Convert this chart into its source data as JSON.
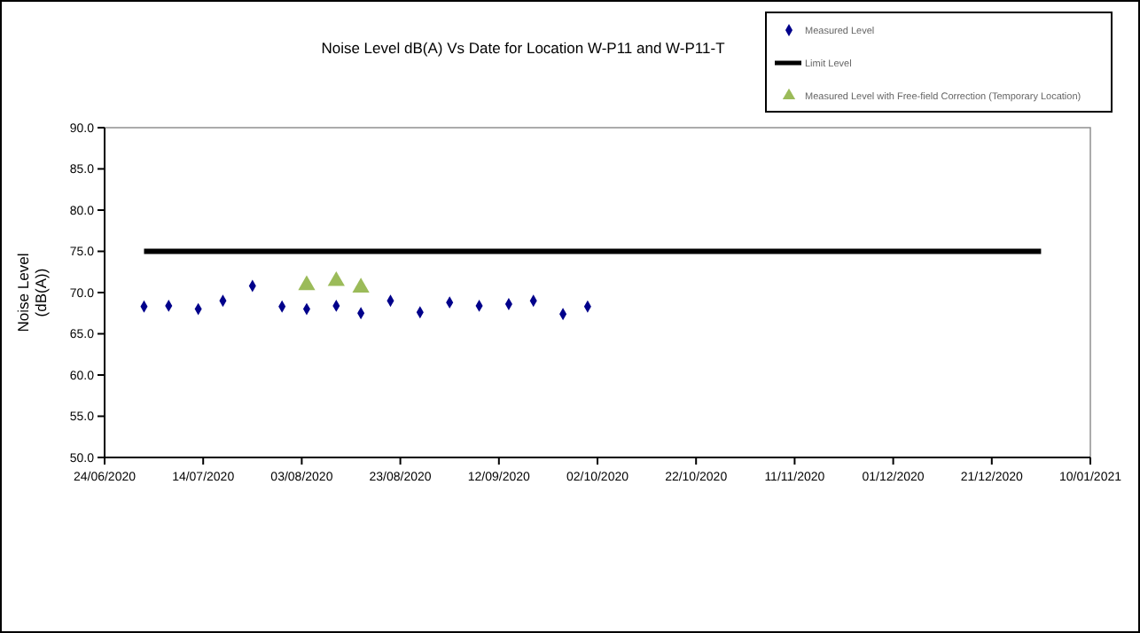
{
  "chart_data": {
    "type": "scatter",
    "title": "Noise Level dB(A) Vs Date for Location W-P11 and W-P11-T",
    "ylabel": "Noise Level\n(dB(A))",
    "xlim": [
      "2020-06-24",
      "2021-01-10"
    ],
    "xticks": [
      {
        "value": "2020-06-24",
        "label": "24/06/2020"
      },
      {
        "value": "2020-07-14",
        "label": "14/07/2020"
      },
      {
        "value": "2020-08-03",
        "label": "03/08/2020"
      },
      {
        "value": "2020-08-23",
        "label": "23/08/2020"
      },
      {
        "value": "2020-09-12",
        "label": "12/09/2020"
      },
      {
        "value": "2020-10-02",
        "label": "02/10/2020"
      },
      {
        "value": "2020-10-22",
        "label": "22/10/2020"
      },
      {
        "value": "2020-11-11",
        "label": "11/11/2020"
      },
      {
        "value": "2020-12-01",
        "label": "01/12/2020"
      },
      {
        "value": "2020-12-21",
        "label": "21/12/2020"
      },
      {
        "value": "2021-01-10",
        "label": "10/01/2021"
      }
    ],
    "ylim": [
      50,
      90
    ],
    "yticks": [
      {
        "value": 50,
        "label": "50.0"
      },
      {
        "value": 55,
        "label": "55.0"
      },
      {
        "value": 60,
        "label": "60.0"
      },
      {
        "value": 65,
        "label": "65.0"
      },
      {
        "value": 70,
        "label": "70.0"
      },
      {
        "value": 75,
        "label": "75.0"
      },
      {
        "value": 80,
        "label": "80.0"
      },
      {
        "value": 85,
        "label": "85.0"
      },
      {
        "value": 90,
        "label": "90.0"
      }
    ],
    "legend": "top right",
    "series": [
      {
        "name": "Measured Level",
        "marker": "diamond",
        "color": "#00008b",
        "x": [
          "2020-07-02",
          "2020-07-07",
          "2020-07-13",
          "2020-07-18",
          "2020-07-24",
          "2020-07-30",
          "2020-08-04",
          "2020-08-10",
          "2020-08-15",
          "2020-08-21",
          "2020-08-27",
          "2020-09-02",
          "2020-09-08",
          "2020-09-14",
          "2020-09-19",
          "2020-09-25",
          "2020-09-30"
        ],
        "values": [
          68.3,
          68.4,
          68.0,
          69.0,
          70.8,
          68.3,
          68.0,
          68.4,
          67.5,
          69.0,
          67.6,
          68.8,
          68.4,
          68.6,
          69.0,
          67.4,
          68.3
        ]
      },
      {
        "name": "Limit Level",
        "type": "line",
        "marker": "none",
        "color": "#000000",
        "x": [
          "2020-07-02",
          "2020-12-31"
        ],
        "values": [
          75,
          75
        ]
      },
      {
        "name": "Measured Level with Free-field Correction (Temporary Location)",
        "marker": "triangle",
        "color": "#9bbb59",
        "x": [
          "2020-08-04",
          "2020-08-10",
          "2020-08-15"
        ],
        "values": [
          70.9,
          71.4,
          70.6
        ]
      }
    ]
  }
}
